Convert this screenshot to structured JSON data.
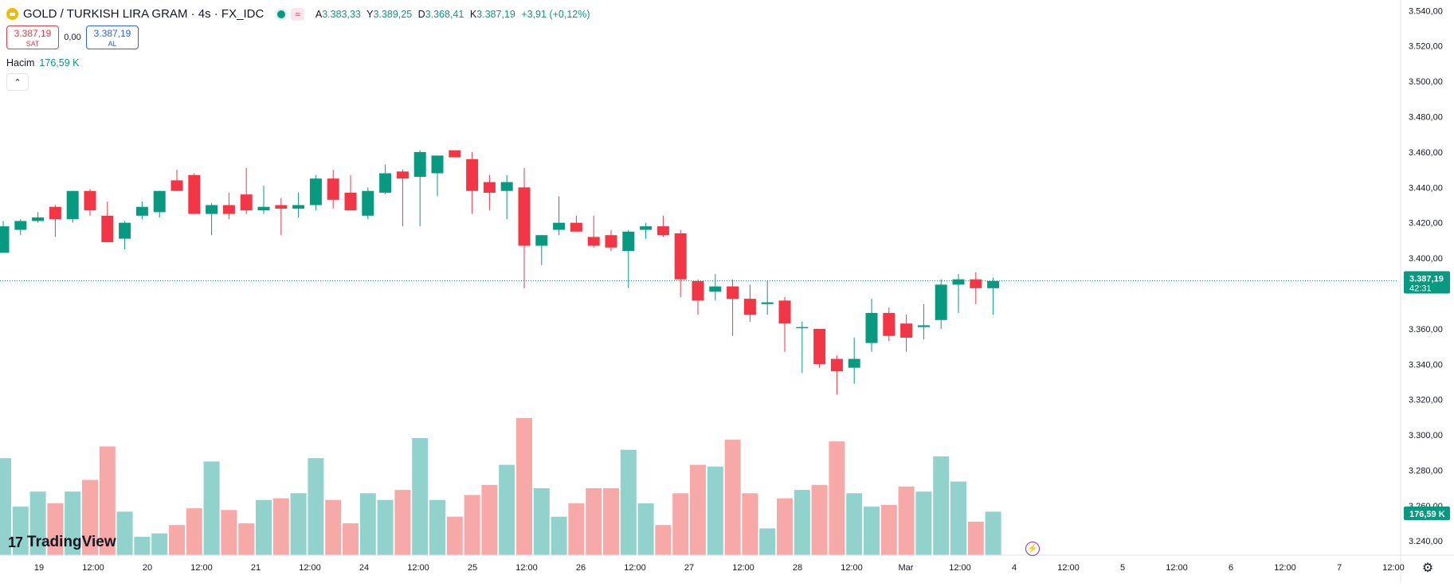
{
  "header": {
    "symbol_title": "GOLD / TURKISH LIRA GRAM · 4s · FX_IDC",
    "wave_badge": "≈",
    "ohlc": {
      "open_label": "A",
      "open_value": "3.383,33",
      "high_label": "Y",
      "high_value": "3.389,25",
      "low_label": "D",
      "low_value": "3.368,41",
      "close_label": "K",
      "close_value": "3.387,19",
      "change": "+3,91 (+0,12%)"
    }
  },
  "trade": {
    "sell_price": "3.387,19",
    "sell_label": "SAT",
    "spread": "0,00",
    "buy_price": "3.387,19",
    "buy_label": "AL"
  },
  "volume_legend": {
    "label": "Hacim",
    "value": "176,59 K"
  },
  "price_tag": {
    "price": "3.387,19",
    "countdown": "42:31"
  },
  "volume_tag": "176,59 K",
  "logo_text": "TradingView",
  "icons": {
    "symbol": "gold-coin-icon",
    "collapse": "chevron-up-icon",
    "flash": "lightning-icon",
    "settings": "gear-icon"
  },
  "colors": {
    "up": "#089981",
    "down": "#f23645",
    "up_volume": "#92d2cc",
    "down_volume": "#f7a9a7"
  },
  "chart_data": {
    "type": "candlestick",
    "y_axis_labels": [
      "3.540,00",
      "3.520,00",
      "3.500,00",
      "3.480,00",
      "3.460,00",
      "3.440,00",
      "3.420,00",
      "3.400,00",
      "3.360,00",
      "3.340,00",
      "3.320,00",
      "3.300,00",
      "3.280,00",
      "3.260,00",
      "3.240,00"
    ],
    "ylim": [
      3232,
      3546
    ],
    "x_axis_labels": [
      "19",
      "12:00",
      "20",
      "12:00",
      "21",
      "12:00",
      "24",
      "12:00",
      "25",
      "12:00",
      "26",
      "12:00",
      "27",
      "12:00",
      "28",
      "12:00",
      "Mar",
      "12:00",
      "4",
      "12:00",
      "5",
      "12:00",
      "6",
      "12:00",
      "7",
      "12:00"
    ],
    "last_price": 3387.19,
    "candles": [
      {
        "o": 3403,
        "h": 3421,
        "l": 3403,
        "c": 3418
      },
      {
        "o": 3416,
        "h": 3422,
        "l": 3413,
        "c": 3421
      },
      {
        "o": 3421,
        "h": 3426,
        "l": 3420,
        "c": 3423
      },
      {
        "o": 3429,
        "h": 3430,
        "l": 3412,
        "c": 3422
      },
      {
        "o": 3422,
        "h": 3438,
        "l": 3420,
        "c": 3438
      },
      {
        "o": 3438,
        "h": 3439,
        "l": 3424,
        "c": 3427
      },
      {
        "o": 3424,
        "h": 3432,
        "l": 3409,
        "c": 3409
      },
      {
        "o": 3411,
        "h": 3421,
        "l": 3405,
        "c": 3420
      },
      {
        "o": 3424,
        "h": 3432,
        "l": 3422,
        "c": 3429
      },
      {
        "o": 3426,
        "h": 3438,
        "l": 3423,
        "c": 3438
      },
      {
        "o": 3444,
        "h": 3450,
        "l": 3438,
        "c": 3438
      },
      {
        "o": 3447,
        "h": 3448,
        "l": 3425,
        "c": 3425
      },
      {
        "o": 3425,
        "h": 3431,
        "l": 3413,
        "c": 3430
      },
      {
        "o": 3430,
        "h": 3437,
        "l": 3422,
        "c": 3425
      },
      {
        "o": 3436,
        "h": 3451,
        "l": 3425,
        "c": 3427
      },
      {
        "o": 3427,
        "h": 3441,
        "l": 3425,
        "c": 3429
      },
      {
        "o": 3430,
        "h": 3434,
        "l": 3413,
        "c": 3428
      },
      {
        "o": 3428,
        "h": 3437,
        "l": 3423,
        "c": 3430
      },
      {
        "o": 3430,
        "h": 3447,
        "l": 3427,
        "c": 3445
      },
      {
        "o": 3445,
        "h": 3450,
        "l": 3428,
        "c": 3433
      },
      {
        "o": 3437,
        "h": 3447,
        "l": 3427,
        "c": 3427
      },
      {
        "o": 3424,
        "h": 3440,
        "l": 3422,
        "c": 3438
      },
      {
        "o": 3437,
        "h": 3453,
        "l": 3436,
        "c": 3448
      },
      {
        "o": 3449,
        "h": 3450,
        "l": 3418,
        "c": 3445
      },
      {
        "o": 3446,
        "h": 3461,
        "l": 3418,
        "c": 3460
      },
      {
        "o": 3448,
        "h": 3458,
        "l": 3435,
        "c": 3458
      },
      {
        "o": 3461,
        "h": 3461,
        "l": 3457,
        "c": 3457
      },
      {
        "o": 3456,
        "h": 3460,
        "l": 3425,
        "c": 3438
      },
      {
        "o": 3443,
        "h": 3447,
        "l": 3427,
        "c": 3437
      },
      {
        "o": 3438,
        "h": 3447,
        "l": 3422,
        "c": 3443
      },
      {
        "o": 3440,
        "h": 3451,
        "l": 3383,
        "c": 3407
      },
      {
        "o": 3407,
        "h": 3413,
        "l": 3396,
        "c": 3413
      },
      {
        "o": 3416,
        "h": 3435,
        "l": 3413,
        "c": 3420
      },
      {
        "o": 3420,
        "h": 3424,
        "l": 3415,
        "c": 3415
      },
      {
        "o": 3412,
        "h": 3424,
        "l": 3406,
        "c": 3407
      },
      {
        "o": 3413,
        "h": 3416,
        "l": 3404,
        "c": 3406
      },
      {
        "o": 3404,
        "h": 3416,
        "l": 3383,
        "c": 3415
      },
      {
        "o": 3416,
        "h": 3420,
        "l": 3411,
        "c": 3418
      },
      {
        "o": 3418,
        "h": 3424,
        "l": 3412,
        "c": 3413
      },
      {
        "o": 3414,
        "h": 3416,
        "l": 3378,
        "c": 3388
      },
      {
        "o": 3387,
        "h": 3388,
        "l": 3368,
        "c": 3376
      },
      {
        "o": 3381,
        "h": 3391,
        "l": 3376,
        "c": 3384
      },
      {
        "o": 3384,
        "h": 3388,
        "l": 3356,
        "c": 3377
      },
      {
        "o": 3377,
        "h": 3385,
        "l": 3364,
        "c": 3368
      },
      {
        "o": 3374,
        "h": 3387,
        "l": 3368,
        "c": 3375
      },
      {
        "o": 3376,
        "h": 3378,
        "l": 3347,
        "c": 3363
      },
      {
        "o": 3361,
        "h": 3364,
        "l": 3335,
        "c": 3361
      },
      {
        "o": 3360,
        "h": 3360,
        "l": 3338,
        "c": 3340
      },
      {
        "o": 3343,
        "h": 3345,
        "l": 3323,
        "c": 3336
      },
      {
        "o": 3338,
        "h": 3355,
        "l": 3329,
        "c": 3343
      },
      {
        "o": 3352,
        "h": 3377,
        "l": 3347,
        "c": 3369
      },
      {
        "o": 3369,
        "h": 3372,
        "l": 3353,
        "c": 3356
      },
      {
        "o": 3363,
        "h": 3368,
        "l": 3347,
        "c": 3355
      },
      {
        "o": 3361,
        "h": 3374,
        "l": 3354,
        "c": 3362
      },
      {
        "o": 3365,
        "h": 3388,
        "l": 3360,
        "c": 3385
      },
      {
        "o": 3385,
        "h": 3391,
        "l": 3369,
        "c": 3388
      },
      {
        "o": 3388,
        "h": 3392,
        "l": 3374,
        "c": 3383
      },
      {
        "o": 3383,
        "h": 3389,
        "l": 3368,
        "c": 3387
      }
    ],
    "volume": [
      0.58,
      0.29,
      0.38,
      0.31,
      0.38,
      0.45,
      0.65,
      0.26,
      0.11,
      0.13,
      0.18,
      0.28,
      0.56,
      0.27,
      0.19,
      0.33,
      0.34,
      0.37,
      0.58,
      0.33,
      0.19,
      0.37,
      0.33,
      0.39,
      0.7,
      0.33,
      0.23,
      0.36,
      0.42,
      0.54,
      0.82,
      0.4,
      0.23,
      0.31,
      0.4,
      0.4,
      0.63,
      0.31,
      0.18,
      0.37,
      0.54,
      0.53,
      0.69,
      0.37,
      0.16,
      0.34,
      0.39,
      0.42,
      0.68,
      0.37,
      0.29,
      0.3,
      0.41,
      0.38,
      0.59,
      0.44,
      0.2,
      0.26
    ]
  }
}
